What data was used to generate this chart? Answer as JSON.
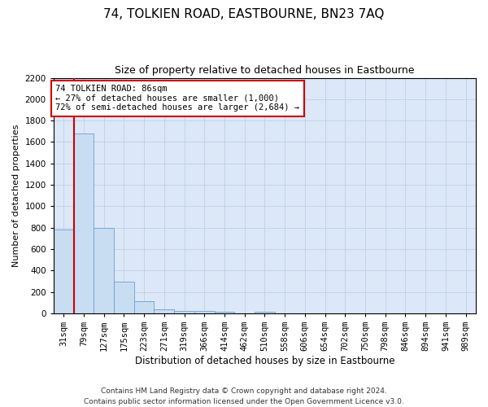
{
  "title": "74, TOLKIEN ROAD, EASTBOURNE, BN23 7AQ",
  "subtitle": "Size of property relative to detached houses in Eastbourne",
  "xlabel": "Distribution of detached houses by size in Eastbourne",
  "ylabel": "Number of detached properties",
  "categories": [
    "31sqm",
    "79sqm",
    "127sqm",
    "175sqm",
    "223sqm",
    "271sqm",
    "319sqm",
    "366sqm",
    "414sqm",
    "462sqm",
    "510sqm",
    "558sqm",
    "606sqm",
    "654sqm",
    "702sqm",
    "750sqm",
    "798sqm",
    "846sqm",
    "894sqm",
    "941sqm",
    "989sqm"
  ],
  "values": [
    780,
    1680,
    800,
    295,
    110,
    38,
    25,
    20,
    15,
    0,
    18,
    0,
    0,
    0,
    0,
    0,
    0,
    0,
    0,
    0,
    0
  ],
  "bar_color": "#c9ddf2",
  "bar_edge_color": "#6a9fd0",
  "vline_color": "#cc0000",
  "vline_x": 0.5,
  "annotation_text": "74 TOLKIEN ROAD: 86sqm\n← 27% of detached houses are smaller (1,000)\n72% of semi-detached houses are larger (2,684) →",
  "annotation_box_color": "#ffffff",
  "annotation_box_edge": "#cc0000",
  "ylim": [
    0,
    2200
  ],
  "yticks": [
    0,
    200,
    400,
    600,
    800,
    1000,
    1200,
    1400,
    1600,
    1800,
    2000,
    2200
  ],
  "grid_color": "#c0cfe8",
  "background_color": "#dce8f8",
  "footer_text": "Contains HM Land Registry data © Crown copyright and database right 2024.\nContains public sector information licensed under the Open Government Licence v3.0.",
  "title_fontsize": 11,
  "subtitle_fontsize": 9,
  "xlabel_fontsize": 8.5,
  "ylabel_fontsize": 8,
  "footer_fontsize": 6.5,
  "tick_fontsize": 7.5,
  "annot_fontsize": 7.5
}
